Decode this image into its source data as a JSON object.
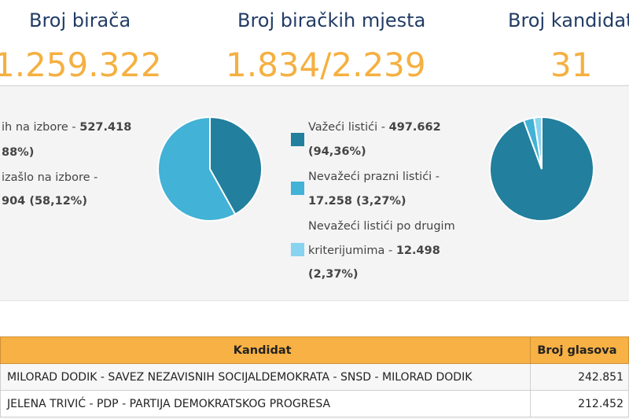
{
  "stats": [
    {
      "label": "Broj birača",
      "value": "1.259.322"
    },
    {
      "label": "Broj biračkih mjesta",
      "value": "1.834/2.239"
    },
    {
      "label": "Broj kandidata",
      "value": "31"
    }
  ],
  "turnout": {
    "line1_text": "ih na izbore - ",
    "line1_value": "527.418",
    "line2_value": "88%)",
    "line3_text": "izašlo na izbore -",
    "line4_value": "904 (58,12%)"
  },
  "ballots": {
    "valid_text": "Važeći listići - ",
    "valid_value": "497.662",
    "valid_pct": "(94,36%)",
    "blank_text": "Nevažeći prazni listići -",
    "blank_value": "17.258 (3,27%)",
    "other_line1": "Nevažeći listići po drugim",
    "other_line2_text": "kriterijumima - ",
    "other_line2_value": "12.498",
    "other_pct": "(2,37%)"
  },
  "colors": {
    "dark_teal": "#227f9d",
    "light_blue": "#42b2d6",
    "pale_blue": "#88d3ef",
    "orange": "#f5b041",
    "navy": "#223d66"
  },
  "table": {
    "headers": {
      "candidate": "Kandidat",
      "votes": "Broj glasova"
    },
    "rows": [
      {
        "candidate": "MILORAD DODIK - SAVEZ NEZAVISNIH SOCIJALDEMOKRATA - SNSD - MILORAD DODIK",
        "votes": "242.851"
      },
      {
        "candidate": "JELENA TRIVIĆ - PDP - PARTIJA DEMOKRATSKOG PROGRESA",
        "votes": "212.452"
      }
    ]
  }
}
